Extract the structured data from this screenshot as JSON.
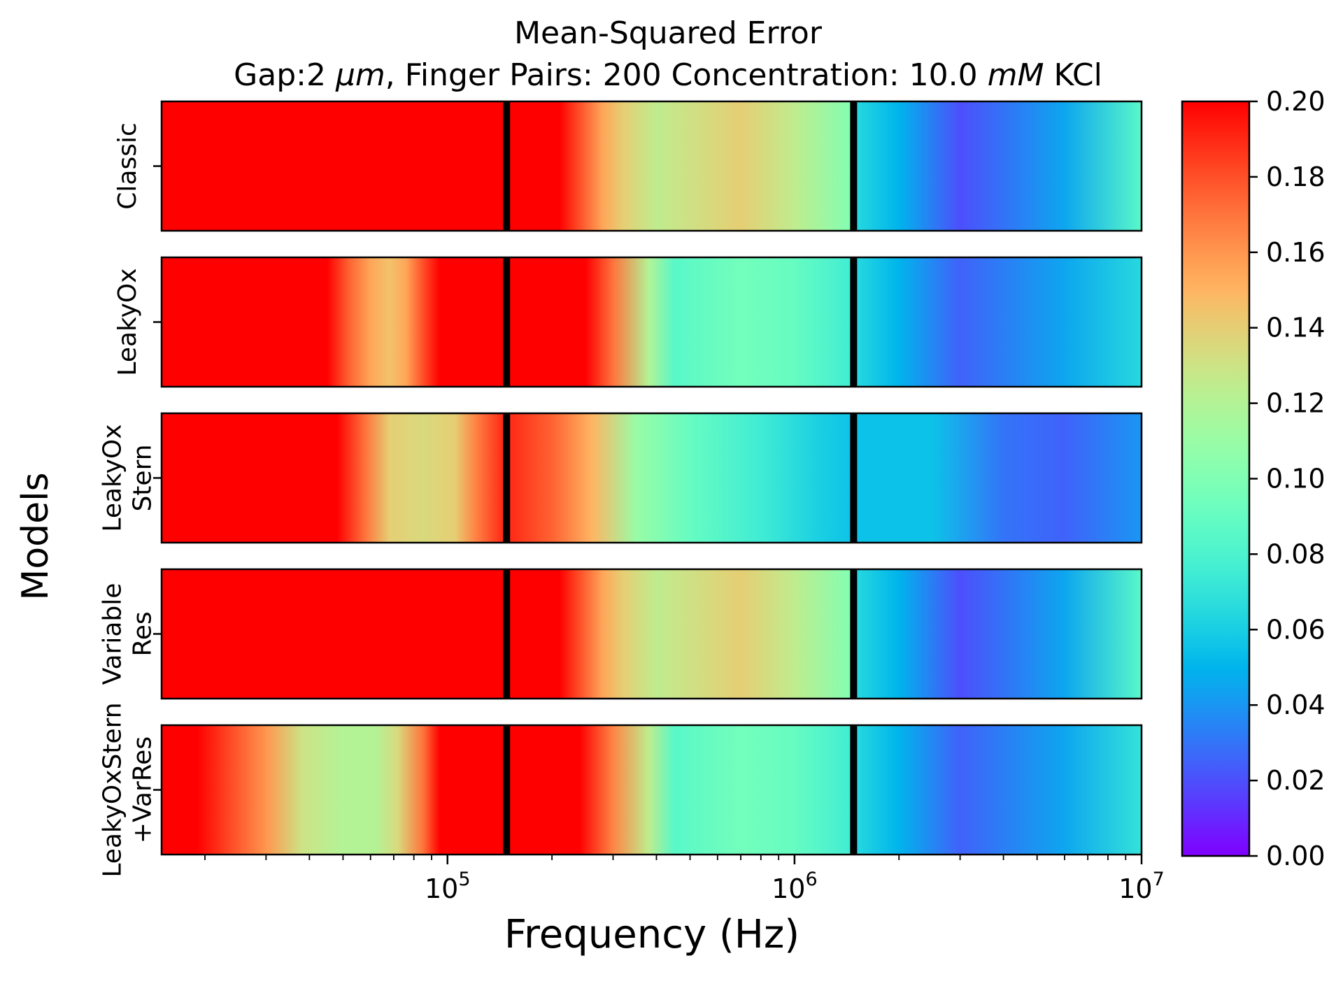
{
  "chart_data": {
    "type": "heatmap",
    "title_line1": "Mean-Squared Error",
    "title_line2": {
      "parts": [
        {
          "text": "Gap:2 ",
          "italic": false
        },
        {
          "text": "μm",
          "italic": true
        },
        {
          "text": ", Finger Pairs: 200 Concentration: 10.0 ",
          "italic": false
        },
        {
          "text": "mM",
          "italic": true
        },
        {
          "text": " KCl",
          "italic": false
        }
      ]
    },
    "xlabel": "Frequency (Hz)",
    "ylabel": "Models",
    "x_scale": "log",
    "xlim": [
      15000,
      10000000
    ],
    "x_ticks": [
      {
        "value": 100000,
        "base": "10",
        "exp": "5"
      },
      {
        "value": 1000000,
        "base": "10",
        "exp": "6"
      },
      {
        "value": 10000000,
        "base": "10",
        "exp": "7"
      }
    ],
    "band_dividers_hz": [
      148000,
      1480000
    ],
    "colormap": "rainbow",
    "colorbar": {
      "vmin": 0.0,
      "vmax": 0.2,
      "ticks": [
        "0.00",
        "0.02",
        "0.04",
        "0.06",
        "0.08",
        "0.10",
        "0.12",
        "0.14",
        "0.16",
        "0.18",
        "0.20"
      ]
    },
    "rows": [
      {
        "label_lines": [
          "Classic"
        ],
        "profile": [
          [
            15000,
            0.2
          ],
          [
            145000,
            0.2
          ],
          [
            150000,
            0.2
          ],
          [
            210000,
            0.2
          ],
          [
            240000,
            0.18
          ],
          [
            280000,
            0.155
          ],
          [
            320000,
            0.14
          ],
          [
            400000,
            0.125
          ],
          [
            700000,
            0.14
          ],
          [
            1000000,
            0.125
          ],
          [
            1480000,
            0.1
          ],
          [
            1500000,
            0.065
          ],
          [
            2000000,
            0.05
          ],
          [
            3000000,
            0.02
          ],
          [
            6000000,
            0.045
          ],
          [
            10000000,
            0.085
          ]
        ]
      },
      {
        "label_lines": [
          "LeakyOx"
        ],
        "profile": [
          [
            15000,
            0.2
          ],
          [
            45000,
            0.2
          ],
          [
            52000,
            0.175
          ],
          [
            60000,
            0.155
          ],
          [
            68000,
            0.145
          ],
          [
            76000,
            0.155
          ],
          [
            85000,
            0.18
          ],
          [
            95000,
            0.2
          ],
          [
            145000,
            0.2
          ],
          [
            150000,
            0.2
          ],
          [
            250000,
            0.2
          ],
          [
            300000,
            0.17
          ],
          [
            380000,
            0.12
          ],
          [
            450000,
            0.085
          ],
          [
            700000,
            0.095
          ],
          [
            1000000,
            0.09
          ],
          [
            1480000,
            0.075
          ],
          [
            1500000,
            0.065
          ],
          [
            2000000,
            0.05
          ],
          [
            3000000,
            0.025
          ],
          [
            6000000,
            0.045
          ],
          [
            10000000,
            0.065
          ]
        ]
      },
      {
        "label_lines": [
          "LeakyOx",
          "Stern"
        ],
        "profile": [
          [
            15000,
            0.2
          ],
          [
            48000,
            0.2
          ],
          [
            58000,
            0.17
          ],
          [
            68000,
            0.14
          ],
          [
            85000,
            0.135
          ],
          [
            105000,
            0.14
          ],
          [
            120000,
            0.165
          ],
          [
            145000,
            0.19
          ],
          [
            150000,
            0.19
          ],
          [
            200000,
            0.175
          ],
          [
            260000,
            0.15
          ],
          [
            350000,
            0.11
          ],
          [
            500000,
            0.09
          ],
          [
            800000,
            0.075
          ],
          [
            1200000,
            0.06
          ],
          [
            1480000,
            0.055
          ],
          [
            1500000,
            0.055
          ],
          [
            2500000,
            0.055
          ],
          [
            4000000,
            0.03
          ],
          [
            6000000,
            0.025
          ],
          [
            10000000,
            0.04
          ]
        ]
      },
      {
        "label_lines": [
          "Variable",
          "Res"
        ],
        "profile": [
          [
            15000,
            0.2
          ],
          [
            145000,
            0.2
          ],
          [
            150000,
            0.2
          ],
          [
            210000,
            0.2
          ],
          [
            240000,
            0.18
          ],
          [
            280000,
            0.155
          ],
          [
            320000,
            0.14
          ],
          [
            400000,
            0.125
          ],
          [
            700000,
            0.14
          ],
          [
            1000000,
            0.125
          ],
          [
            1480000,
            0.1
          ],
          [
            1500000,
            0.065
          ],
          [
            2000000,
            0.05
          ],
          [
            3000000,
            0.02
          ],
          [
            6000000,
            0.045
          ],
          [
            10000000,
            0.085
          ]
        ]
      },
      {
        "label_lines": [
          "LeakyOxStern",
          "+VarRes"
        ],
        "profile": [
          [
            15000,
            0.2
          ],
          [
            19000,
            0.2
          ],
          [
            24000,
            0.18
          ],
          [
            30000,
            0.16
          ],
          [
            38000,
            0.13
          ],
          [
            50000,
            0.12
          ],
          [
            62000,
            0.12
          ],
          [
            72000,
            0.135
          ],
          [
            85000,
            0.17
          ],
          [
            95000,
            0.2
          ],
          [
            145000,
            0.2
          ],
          [
            150000,
            0.2
          ],
          [
            240000,
            0.2
          ],
          [
            300000,
            0.165
          ],
          [
            380000,
            0.125
          ],
          [
            450000,
            0.085
          ],
          [
            700000,
            0.095
          ],
          [
            1000000,
            0.09
          ],
          [
            1480000,
            0.075
          ],
          [
            1500000,
            0.065
          ],
          [
            2000000,
            0.05
          ],
          [
            3000000,
            0.025
          ],
          [
            6000000,
            0.045
          ],
          [
            10000000,
            0.07
          ]
        ]
      }
    ]
  }
}
